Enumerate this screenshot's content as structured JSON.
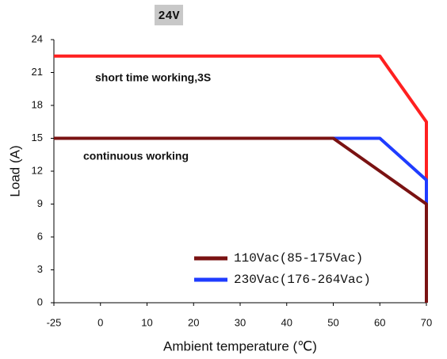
{
  "chart_data": {
    "type": "line",
    "title": "24V",
    "y_label": "Load (A)",
    "x_label": "Ambient temperature  (℃)",
    "annotations": [
      "short time working,3S",
      "continuous working"
    ],
    "xlim": [
      -25,
      70
    ],
    "xticks": [
      -25,
      0,
      10,
      20,
      30,
      40,
      50,
      60,
      70
    ],
    "ylim": [
      0,
      24
    ],
    "yticks": [
      0,
      3,
      6,
      9,
      12,
      15,
      18,
      21,
      24
    ],
    "grid": false,
    "legend": "lower right",
    "series": [
      {
        "color": "#ff2020",
        "x": [
          -25,
          60,
          70,
          70
        ],
        "values": [
          22.5,
          22.5,
          16.5,
          11.2
        ]
      },
      {
        "name": "230Vac(176-264Vac)",
        "color": "#1f3cff",
        "x": [
          50,
          60,
          70,
          70
        ],
        "values": [
          15,
          15,
          11.2,
          9
        ]
      },
      {
        "name": "110Vac(85-175Vac)",
        "color": "#7a1212",
        "x": [
          -25,
          50,
          60,
          70,
          70
        ],
        "values": [
          15,
          15,
          12,
          9,
          0
        ]
      }
    ]
  }
}
